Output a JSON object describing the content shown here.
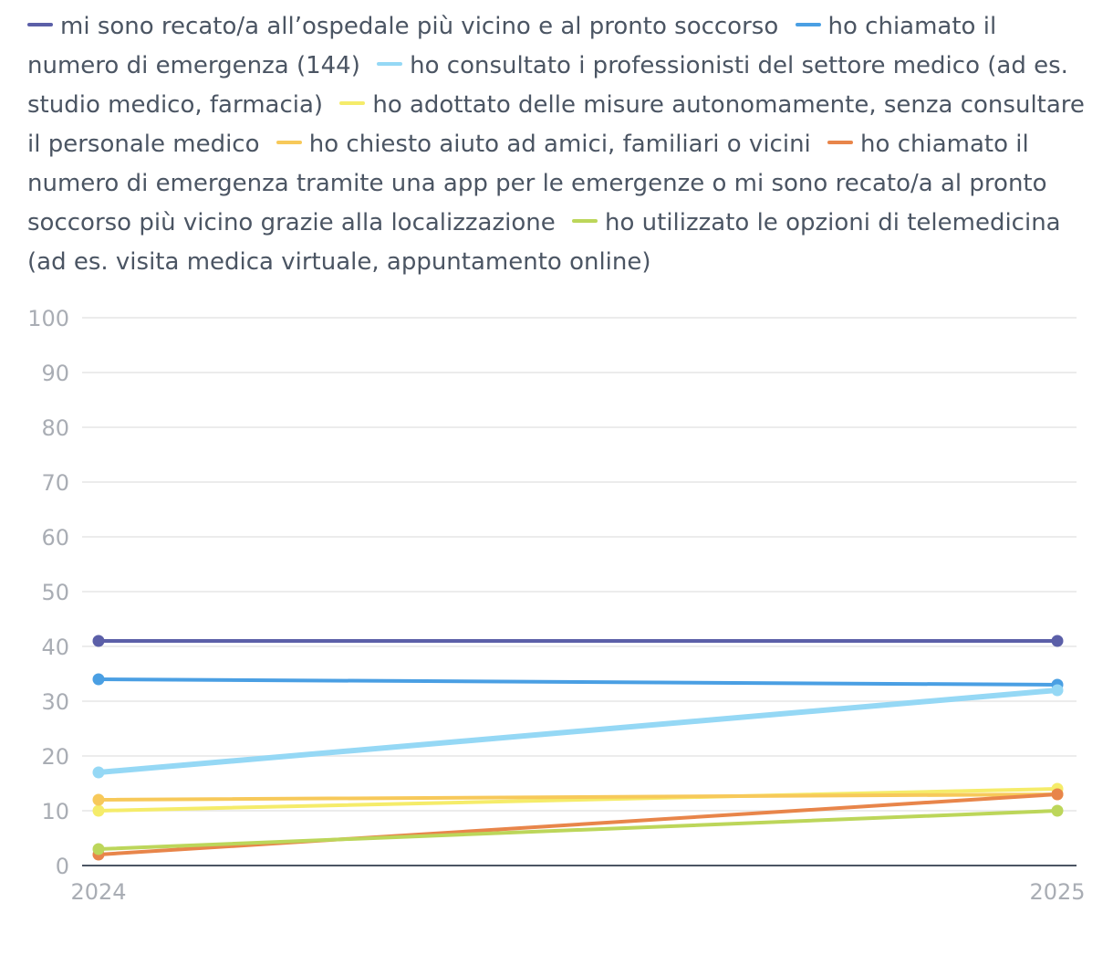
{
  "chart_data": {
    "type": "line",
    "categories": [
      "2024",
      "2025"
    ],
    "ylim": [
      0,
      100
    ],
    "yticks": [
      0,
      10,
      20,
      30,
      40,
      50,
      60,
      70,
      80,
      90,
      100
    ],
    "grid": true,
    "legend_position": "top",
    "series": [
      {
        "name": "mi sono recato/a all’ospedale più vicino e al pronto soccorso",
        "color": "#5b5fa8",
        "values": [
          41,
          41
        ]
      },
      {
        "name": "ho chiamato il numero di emergenza (144)",
        "color": "#4a9fe3",
        "values": [
          34,
          33
        ]
      },
      {
        "name": "ho consultato i professionisti del settore medico (ad es. studio medico, farmacia)",
        "color": "#95d8f5",
        "values": [
          17,
          32
        ]
      },
      {
        "name": "ho adottato delle misure autonomamente, senza consultare il personale medico",
        "color": "#f5ec6a",
        "values": [
          10,
          14
        ]
      },
      {
        "name": "ho chiesto aiuto ad amici, familiari o vicini",
        "color": "#f7c95a",
        "values": [
          12,
          13
        ]
      },
      {
        "name": "ho chiamato il numero di emergenza tramite una app per le emergenze o mi sono recato/a al pronto soccorso più vicino grazie alla localizzazione",
        "color": "#e8854a",
        "values": [
          2,
          13
        ]
      },
      {
        "name": "ho utilizzato le opzioni di telemedicina (ad es. visita medica virtuale, appuntamento online)",
        "color": "#bcd65a",
        "values": [
          3,
          10
        ]
      }
    ]
  }
}
